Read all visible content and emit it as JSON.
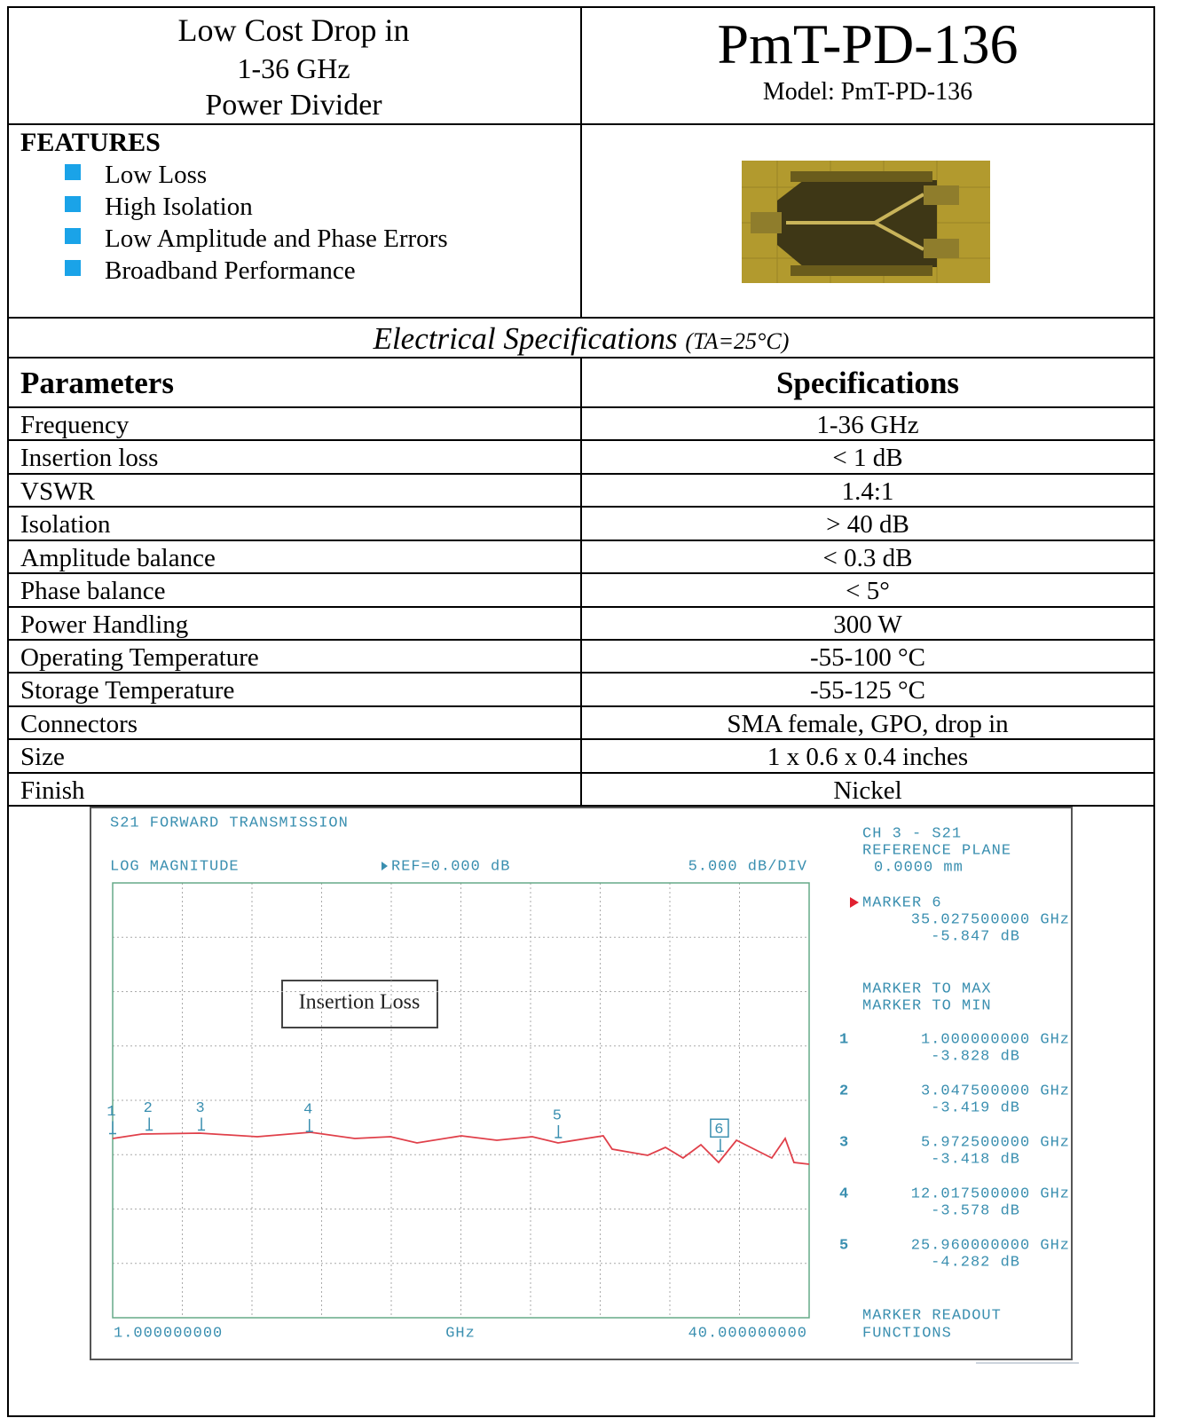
{
  "header": {
    "title_lines": [
      "Low Cost Drop in",
      "1-36 GHz",
      "Power Divider"
    ],
    "part_number": "PmT-PD-136",
    "model": "Model: PmT-PD-136"
  },
  "features": {
    "heading": "FEATURES",
    "items": [
      "Low Loss",
      "High Isolation",
      "Low Amplitude and Phase Errors",
      "Broadband Performance"
    ]
  },
  "specs": {
    "title": "Electrical Specifications",
    "condition": "(TA=25°C)",
    "columns": [
      "Parameters",
      "Specifications"
    ],
    "rows": [
      [
        "Frequency",
        "1-36 GHz"
      ],
      [
        "Insertion loss",
        "< 1 dB"
      ],
      [
        "VSWR",
        "1.4:1"
      ],
      [
        "Isolation",
        "> 40 dB"
      ],
      [
        "Amplitude balance",
        "< 0.3 dB"
      ],
      [
        "Phase balance",
        "< 5°"
      ],
      [
        "Power Handling",
        "300 W"
      ],
      [
        "Operating Temperature",
        "-55-100 °C"
      ],
      [
        "Storage Temperature",
        "-55-125 °C"
      ],
      [
        "Connectors",
        "SMA female, GPO, drop in"
      ],
      [
        "Size",
        "1 x 0.6 x 0.4 inches"
      ],
      [
        "Finish",
        "Nickel"
      ]
    ]
  },
  "chart_data": {
    "type": "line",
    "title": "S21 FORWARD TRANSMISSION",
    "format": "LOG MAGNITUDE",
    "reference": "REF=0.000 dB",
    "scale": "5.000 dB/DIV",
    "channel": "CH 3 - S21",
    "reference_plane": "REFERENCE PLANE",
    "reference_plane_value": "0.0000 mm",
    "active_marker": {
      "label": "MARKER 6",
      "number": "6",
      "frequency": "35.027500000 GHz",
      "level": "-5.847 dB",
      "x": 35.0275,
      "value": -5.847
    },
    "functions": [
      "MARKER TO MAX",
      "MARKER TO MIN"
    ],
    "markers": [
      {
        "label": "1",
        "frequency": "1.000000000 GHz",
        "level": "-3.828 dB",
        "x": 1.0,
        "value": -3.828
      },
      {
        "label": "2",
        "frequency": "3.047500000 GHz",
        "level": "-3.419 dB",
        "x": 3.0475,
        "value": -3.419
      },
      {
        "label": "3",
        "frequency": "5.972500000 GHz",
        "level": "-3.418 dB",
        "x": 5.9725,
        "value": -3.418
      },
      {
        "label": "4",
        "frequency": "12.017500000 GHz",
        "level": "-3.578 dB",
        "x": 12.0175,
        "value": -3.578
      },
      {
        "label": "5",
        "frequency": "25.960000000 GHz",
        "level": "-4.282 dB",
        "x": 25.96,
        "value": -4.282
      }
    ],
    "x_start_label": "1.000000000",
    "x_unit_label": "GHz",
    "x_stop_label": "40.000000000",
    "footer": [
      "MARKER READOUT",
      "FUNCTIONS"
    ],
    "annotation": "Insertion Loss",
    "xlim": [
      1,
      40
    ],
    "ylim": [
      -25,
      25
    ],
    "color": "#e0404a",
    "x": [
      1.0,
      2.64,
      5.87,
      9.1,
      12.08,
      14.56,
      16.55,
      18.04,
      20.52,
      22.51,
      24.5,
      25.94,
      28.47,
      28.97,
      30.96,
      31.95,
      32.94,
      33.94,
      34.93,
      35.93,
      36.92,
      37.91,
      38.66,
      39.15,
      40.0
    ],
    "values": [
      -4.39,
      -3.88,
      -3.78,
      -4.18,
      -3.67,
      -4.39,
      -4.18,
      -4.9,
      -4.08,
      -4.59,
      -4.18,
      -4.9,
      -4.08,
      -5.61,
      -6.33,
      -5.41,
      -6.63,
      -5.1,
      -7.14,
      -4.59,
      -5.61,
      -6.63,
      -4.39,
      -7.14,
      -7.35
    ]
  }
}
